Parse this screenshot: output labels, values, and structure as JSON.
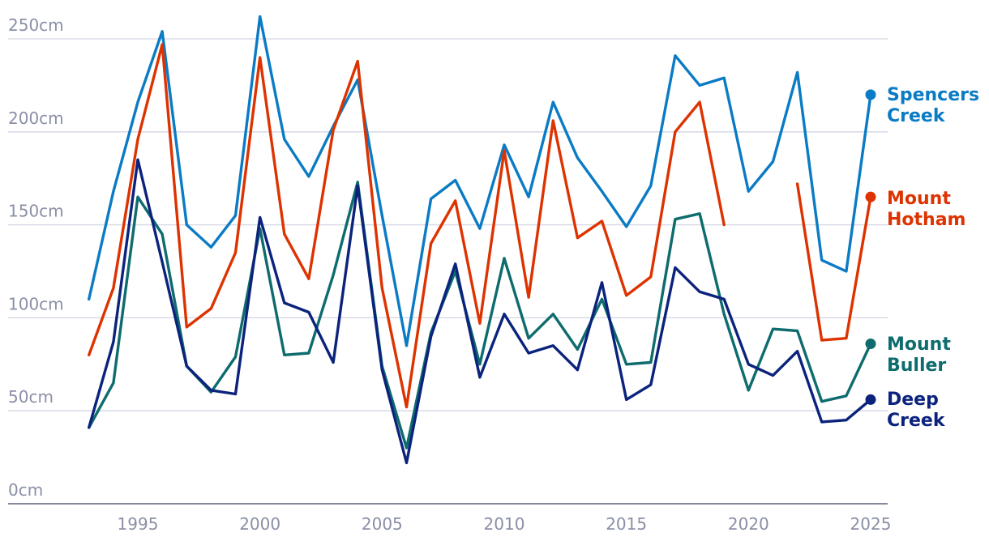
{
  "chart_data": {
    "type": "line",
    "title": "",
    "xlabel": "",
    "ylabel": "",
    "xlim": [
      1993,
      2025
    ],
    "ylim": [
      0,
      250
    ],
    "grid": true,
    "legend": "right (end-of-line labels)",
    "y_ticks": [
      {
        "value": 0,
        "label": "0cm"
      },
      {
        "value": 50,
        "label": "50cm"
      },
      {
        "value": 100,
        "label": "100cm"
      },
      {
        "value": 150,
        "label": "150cm"
      },
      {
        "value": 200,
        "label": "200cm"
      },
      {
        "value": 250,
        "label": "250cm"
      }
    ],
    "x_ticks": [
      {
        "value": 1995,
        "label": "1995"
      },
      {
        "value": 2000,
        "label": "2000"
      },
      {
        "value": 2005,
        "label": "2005"
      },
      {
        "value": 2010,
        "label": "2010"
      },
      {
        "value": 2015,
        "label": "2015"
      },
      {
        "value": 2020,
        "label": "2020"
      },
      {
        "value": 2025,
        "label": "2025"
      }
    ],
    "x": [
      1993,
      1994,
      1995,
      1996,
      1997,
      1998,
      1999,
      2000,
      2001,
      2002,
      2003,
      2004,
      2005,
      2006,
      2007,
      2008,
      2009,
      2010,
      2011,
      2012,
      2013,
      2014,
      2015,
      2016,
      2017,
      2018,
      2019,
      2020,
      2021,
      2022,
      2023,
      2024,
      2025
    ],
    "series": [
      {
        "name": "Spencers Creek",
        "label_lines": [
          "Spencers",
          "Creek"
        ],
        "color": "#0a7bc4",
        "values": [
          110,
          168,
          216,
          254,
          150,
          138,
          155,
          262,
          196,
          176,
          203,
          228,
          155,
          85,
          164,
          174,
          148,
          193,
          165,
          216,
          186,
          168,
          149,
          171,
          241,
          225,
          229,
          168,
          184,
          232,
          131,
          125,
          220
        ]
      },
      {
        "name": "Mount Hotham",
        "label_lines": [
          "Mount",
          "Hotham"
        ],
        "color": "#dd3300",
        "values": [
          80,
          116,
          196,
          247,
          95,
          105,
          135,
          240,
          145,
          121,
          201,
          238,
          116,
          52,
          140,
          163,
          97,
          190,
          111,
          206,
          143,
          152,
          112,
          122,
          200,
          216,
          150,
          null,
          null,
          172,
          88,
          89,
          165
        ]
      },
      {
        "name": "Mount Buller",
        "label_lines": [
          "Mount",
          "Buller"
        ],
        "color": "#0e6b6e",
        "values": [
          41,
          65,
          165,
          145,
          74,
          60,
          79,
          148,
          80,
          81,
          123,
          173,
          74,
          30,
          92,
          125,
          75,
          132,
          89,
          102,
          83,
          110,
          75,
          76,
          153,
          156,
          102,
          61,
          94,
          93,
          55,
          58,
          86
        ]
      },
      {
        "name": "Deep Creek",
        "label_lines": [
          "Deep",
          "Creek"
        ],
        "color": "#0b237c",
        "values": [
          41,
          87,
          185,
          130,
          74,
          61,
          59,
          154,
          108,
          103,
          76,
          171,
          72,
          22,
          90,
          129,
          68,
          102,
          81,
          85,
          72,
          119,
          56,
          64,
          127,
          114,
          110,
          75,
          69,
          82,
          44,
          45,
          56
        ]
      }
    ]
  }
}
